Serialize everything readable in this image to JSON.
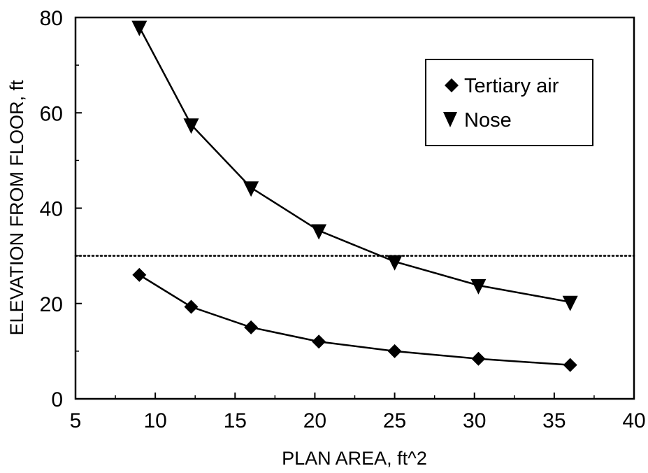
{
  "chart_data": {
    "type": "line",
    "xlabel": "PLAN AREA, ft^2",
    "ylabel": "ELEVATION FROM FLOOR, ft",
    "xlim": [
      5,
      40
    ],
    "ylim": [
      0,
      80
    ],
    "xticks": [
      5,
      10,
      15,
      20,
      25,
      30,
      35,
      40
    ],
    "yticks": [
      0,
      20,
      40,
      60,
      80
    ],
    "grid": false,
    "legend_position": "top-right",
    "reference_line": {
      "y": 30,
      "style": "dotted"
    },
    "series": [
      {
        "name": "Tertiary air",
        "marker": "diamond",
        "x": [
          9,
          12.25,
          16,
          20.25,
          25,
          30.25,
          36
        ],
        "y": [
          26,
          19.3,
          15,
          12,
          10,
          8.4,
          7.1
        ]
      },
      {
        "name": "Nose",
        "marker": "triangle-down",
        "x": [
          9,
          12.25,
          16,
          20.25,
          25,
          30.25,
          36
        ],
        "y": [
          78,
          57.5,
          44.3,
          35.3,
          28.8,
          23.8,
          20.3
        ]
      }
    ]
  },
  "colors": {
    "ink": "#000000",
    "background": "#ffffff"
  }
}
